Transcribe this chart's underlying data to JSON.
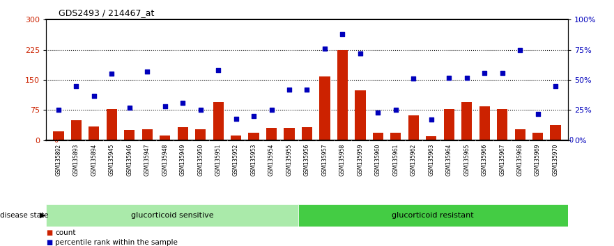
{
  "title": "GDS2493 / 214467_at",
  "samples": [
    "GSM135892",
    "GSM135893",
    "GSM135894",
    "GSM135945",
    "GSM135946",
    "GSM135947",
    "GSM135948",
    "GSM135949",
    "GSM135950",
    "GSM135951",
    "GSM135952",
    "GSM135953",
    "GSM135954",
    "GSM135955",
    "GSM135956",
    "GSM135957",
    "GSM135958",
    "GSM135959",
    "GSM135960",
    "GSM135961",
    "GSM135962",
    "GSM135963",
    "GSM135964",
    "GSM135965",
    "GSM135966",
    "GSM135967",
    "GSM135968",
    "GSM135969",
    "GSM135970"
  ],
  "counts": [
    22,
    50,
    35,
    78,
    25,
    28,
    12,
    32,
    28,
    95,
    12,
    18,
    30,
    30,
    32,
    158,
    225,
    125,
    18,
    18,
    62,
    10,
    78,
    95,
    85,
    78,
    28,
    18,
    38
  ],
  "percentiles": [
    25,
    45,
    37,
    55,
    27,
    57,
    28,
    31,
    25,
    58,
    18,
    20,
    25,
    42,
    42,
    76,
    88,
    72,
    23,
    25,
    51,
    17,
    52,
    52,
    56,
    56,
    75,
    22,
    45
  ],
  "sensitive_count": 14,
  "bar_color": "#cc2200",
  "dot_color": "#0000bb",
  "sensitive_color": "#aaeaaa",
  "resistant_color": "#44cc44",
  "ylim_left": [
    0,
    300
  ],
  "ylim_right": [
    0,
    100
  ],
  "yticks_left": [
    0,
    75,
    150,
    225,
    300
  ],
  "yticks_right": [
    0,
    25,
    50,
    75,
    100
  ],
  "hlines": [
    75,
    150,
    225
  ],
  "xtick_bg": "#cccccc"
}
